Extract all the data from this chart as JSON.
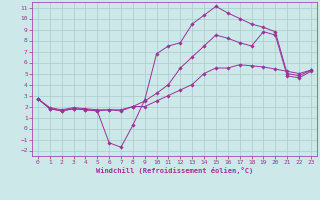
{
  "bg_color": "#cce8e8",
  "line_color": "#993399",
  "grid_color": "#aacccc",
  "xlabel": "Windchill (Refroidissement éolien,°C)",
  "xlim": [
    -0.5,
    23.5
  ],
  "ylim": [
    -2.5,
    11.5
  ],
  "xticks": [
    0,
    1,
    2,
    3,
    4,
    5,
    6,
    7,
    8,
    9,
    10,
    11,
    12,
    13,
    14,
    15,
    16,
    17,
    18,
    19,
    20,
    21,
    22,
    23
  ],
  "yticks": [
    -2,
    -1,
    0,
    1,
    2,
    3,
    4,
    5,
    6,
    7,
    8,
    9,
    10,
    11
  ],
  "line1_x": [
    0,
    1,
    2,
    3,
    4,
    5,
    6,
    7,
    8,
    9,
    10,
    11,
    12,
    13,
    14,
    15,
    16,
    17,
    18,
    19,
    20,
    21,
    22,
    23
  ],
  "line1_y": [
    2.7,
    1.8,
    1.6,
    1.8,
    1.7,
    1.6,
    1.7,
    1.6,
    2.0,
    2.0,
    2.5,
    3.0,
    3.5,
    4.0,
    5.0,
    5.5,
    5.5,
    5.8,
    5.7,
    5.6,
    5.4,
    5.2,
    5.0,
    5.3
  ],
  "line2_x": [
    0,
    1,
    2,
    3,
    4,
    5,
    6,
    7,
    8,
    9,
    10,
    11,
    12,
    13,
    14,
    15,
    16,
    17,
    18,
    19,
    20,
    21,
    22,
    23
  ],
  "line2_y": [
    2.7,
    1.8,
    1.6,
    1.8,
    1.7,
    1.6,
    -1.3,
    -1.7,
    0.3,
    2.6,
    6.8,
    7.5,
    7.8,
    9.5,
    10.3,
    11.1,
    10.5,
    10.0,
    9.5,
    9.2,
    8.8,
    5.0,
    4.8,
    5.3
  ],
  "line3_x": [
    0,
    1,
    2,
    3,
    4,
    5,
    6,
    7,
    8,
    9,
    10,
    11,
    12,
    13,
    14,
    15,
    16,
    17,
    18,
    19,
    20,
    21,
    22,
    23
  ],
  "line3_y": [
    2.7,
    1.9,
    1.7,
    1.9,
    1.8,
    1.7,
    1.7,
    1.7,
    2.0,
    2.5,
    3.2,
    4.0,
    5.5,
    6.5,
    7.5,
    8.5,
    8.2,
    7.8,
    7.5,
    8.8,
    8.5,
    4.8,
    4.6,
    5.2
  ],
  "tick_fontsize": 4.5,
  "xlabel_fontsize": 5.0,
  "marker_size": 1.8,
  "line_width": 0.7
}
